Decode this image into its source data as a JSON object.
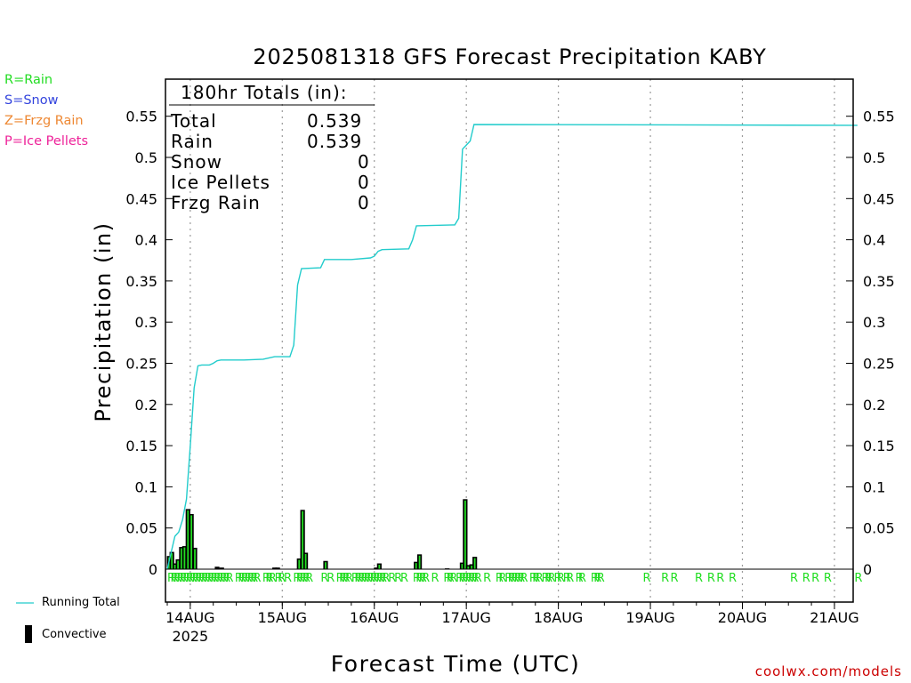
{
  "legend": {
    "rain": "R=Rain",
    "snow": "S=Snow",
    "frzg_rain": "Z=Frzg Rain",
    "ice_pellets": "P=Ice Pellets",
    "running_total": "Running Total",
    "convective": "Convective"
  },
  "colors": {
    "rain": "#22dd22",
    "snow": "#3344dd",
    "frzg_rain": "#ee8833",
    "ice_pellets": "#ee2299",
    "running_total": "#22cccc",
    "convective": "#000000",
    "credit": "#cc0000"
  },
  "totals": {
    "header": "180hr Totals (in):",
    "rows": [
      {
        "label": "Total",
        "value": "0.539"
      },
      {
        "label": "Rain",
        "value": "0.539"
      },
      {
        "label": "Snow",
        "value": "0"
      },
      {
        "label": "Ice Pellets",
        "value": "0"
      },
      {
        "label": "Frzg Rain",
        "value": "0"
      }
    ]
  },
  "credit": "coolwx.com/models",
  "chart_data": {
    "type": "bar",
    "title": "2025081318 GFS Forecast Precipitation KABY",
    "xlabel": "Forecast Time (UTC)",
    "ylabel": "Precipitation (in)",
    "x_unit": "forecast hour from 2025-08-13 18 UTC",
    "xlim": [
      0,
      180
    ],
    "ylim": [
      -0.04,
      0.59
    ],
    "yticks": [
      0,
      0.05,
      0.1,
      0.15,
      0.2,
      0.25,
      0.3,
      0.35,
      0.4,
      0.45,
      0.5,
      0.55
    ],
    "ytick_labels": [
      "0",
      "0.05",
      "0.1",
      "0.15",
      "0.2",
      "0.25",
      "0.3",
      "0.35",
      "0.4",
      "0.45",
      "0.5",
      "0.55"
    ],
    "xticks": [
      {
        "hour": 6,
        "label": "14AUG",
        "sublabel": "2025"
      },
      {
        "hour": 30,
        "label": "15AUG"
      },
      {
        "hour": 54,
        "label": "16AUG"
      },
      {
        "hour": 78,
        "label": "17AUG"
      },
      {
        "hour": 102,
        "label": "18AUG"
      },
      {
        "hour": 126,
        "label": "19AUG"
      },
      {
        "hour": 150,
        "label": "20AUG"
      },
      {
        "hour": 174,
        "label": "21AUG"
      }
    ],
    "grid": "vertical-dotted",
    "series": [
      {
        "name": "Running Total",
        "kind": "line",
        "points": [
          [
            0,
            0
          ],
          [
            1,
            0.02
          ],
          [
            2,
            0.04
          ],
          [
            3,
            0.045
          ],
          [
            4,
            0.06
          ],
          [
            5,
            0.085
          ],
          [
            6,
            0.15
          ],
          [
            7,
            0.22
          ],
          [
            8,
            0.247
          ],
          [
            9,
            0.248
          ],
          [
            10,
            0.248
          ],
          [
            11,
            0.248
          ],
          [
            12,
            0.25
          ],
          [
            13,
            0.253
          ],
          [
            14,
            0.254
          ],
          [
            20,
            0.254
          ],
          [
            25,
            0.255
          ],
          [
            28,
            0.258
          ],
          [
            32,
            0.258
          ],
          [
            33,
            0.272
          ],
          [
            34,
            0.345
          ],
          [
            35,
            0.365
          ],
          [
            40,
            0.366
          ],
          [
            41,
            0.376
          ],
          [
            48,
            0.376
          ],
          [
            53,
            0.378
          ],
          [
            54,
            0.38
          ],
          [
            55,
            0.386
          ],
          [
            56,
            0.388
          ],
          [
            63,
            0.389
          ],
          [
            64,
            0.4
          ],
          [
            65,
            0.417
          ],
          [
            75,
            0.418
          ],
          [
            76,
            0.426
          ],
          [
            77,
            0.51
          ],
          [
            78,
            0.515
          ],
          [
            79,
            0.52
          ],
          [
            80,
            0.54
          ],
          [
            180,
            0.539
          ]
        ]
      },
      {
        "name": "Convective",
        "kind": "bar",
        "points": [
          [
            0.5,
            0.016
          ],
          [
            1.2,
            0.021
          ],
          [
            2.0,
            0.007
          ],
          [
            2.8,
            0.012
          ],
          [
            3.7,
            0.027
          ],
          [
            4.5,
            0.028
          ],
          [
            5.4,
            0.073
          ],
          [
            6.3,
            0.067
          ],
          [
            7.2,
            0.026
          ],
          [
            13.0,
            0.003
          ],
          [
            14.2,
            0.002
          ],
          [
            28.0,
            0.002
          ],
          [
            28.8,
            0.002
          ],
          [
            34.4,
            0.013
          ],
          [
            35.3,
            0.072
          ],
          [
            36.1,
            0.02
          ],
          [
            41.3,
            0.01
          ],
          [
            54.5,
            0.002
          ],
          [
            55.3,
            0.007
          ],
          [
            64.9,
            0.009
          ],
          [
            65.8,
            0.018
          ],
          [
            73.0,
            0.001
          ],
          [
            76.9,
            0.008
          ],
          [
            77.7,
            0.085
          ],
          [
            78.5,
            0.005
          ],
          [
            79.4,
            0.006
          ],
          [
            80.2,
            0.015
          ]
        ]
      }
    ],
    "ptype_markers": {
      "symbol": "R",
      "hours": [
        0,
        0.8,
        1.6,
        2.4,
        3.2,
        4.0,
        4.8,
        5.6,
        6.4,
        7.2,
        8.0,
        8.8,
        9.6,
        10.4,
        11.2,
        12.0,
        12.8,
        13.6,
        14.4,
        15.2,
        17.6,
        18.4,
        19.2,
        20.0,
        20.8,
        21.6,
        22.4,
        24.8,
        25.6,
        26.4,
        28.0,
        28.8,
        30.4,
        32.8,
        33.6,
        34.4,
        35.2,
        36.0,
        40.0,
        41.6,
        44.0,
        44.8,
        45.6,
        46.4,
        48.0,
        48.8,
        49.6,
        50.4,
        51.2,
        52.0,
        52.8,
        53.6,
        54.4,
        55.2,
        56.0,
        57.6,
        59.2,
        60.8,
        64.0,
        64.8,
        65.6,
        66.4,
        68.8,
        72.0,
        72.8,
        73.6,
        75.2,
        76.0,
        76.8,
        77.6,
        78.4,
        79.2,
        80.0,
        82.4,
        85.6,
        86.4,
        88.0,
        88.8,
        89.6,
        90.4,
        91.2,
        92.0,
        94.4,
        95.2,
        96.0,
        97.6,
        98.4,
        99.2,
        100.8,
        101.6,
        103.2,
        104.0,
        106.4,
        107.2,
        110.4,
        111.2,
        112.0,
        124.0,
        128.8,
        131.2,
        137.6,
        140.8,
        143.2,
        146.4,
        162.4,
        165.6,
        168.0,
        171.2,
        179.2
      ]
    }
  }
}
